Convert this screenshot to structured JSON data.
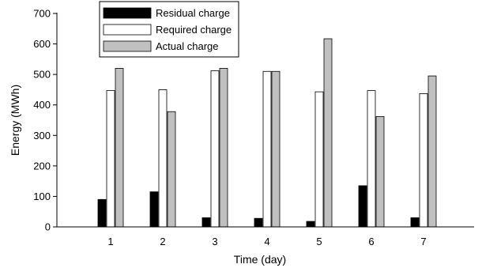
{
  "chart_data": {
    "type": "bar",
    "xlabel": "Time (day)",
    "ylabel": "Energy (MWh)",
    "ylim": [
      0,
      700
    ],
    "yticks": [
      0,
      100,
      200,
      300,
      400,
      500,
      600,
      700
    ],
    "categories": [
      "1",
      "2",
      "3",
      "4",
      "5",
      "6",
      "7"
    ],
    "series": [
      {
        "name": "Residual charge",
        "color": "#000000",
        "values": [
          90,
          115,
          30,
          28,
          18,
          135,
          30
        ]
      },
      {
        "name": "Required charge",
        "color": "#ffffff",
        "values": [
          447,
          450,
          512,
          510,
          443,
          447,
          437
        ]
      },
      {
        "name": "Actual charge",
        "color": "#c0c0c0",
        "values": [
          520,
          378,
          520,
          510,
          617,
          362,
          495
        ]
      }
    ],
    "legend": "top-left",
    "grid": false
  }
}
